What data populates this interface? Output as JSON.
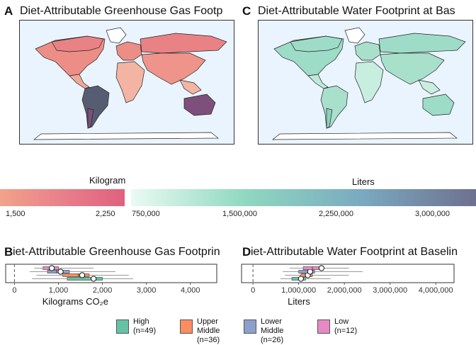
{
  "panels": {
    "A": {
      "letter": "A",
      "title": "Diet-Attributable Greenhouse Gas Footp"
    },
    "C": {
      "letter": "C",
      "title": "Diet-Attributable Water Footprint at Bas"
    },
    "B": {
      "letter": "B",
      "title": "iet-Attributable Greenhouse Gas Footprin"
    },
    "D": {
      "letter": "D",
      "title": "iet-Attributable Water Footprint at Baselin"
    }
  },
  "colors": {
    "ghg_gradient": [
      "#f2a28a",
      "#e8808a",
      "#e0607e"
    ],
    "water_gradient": [
      "#eafaf3",
      "#8fd8bf",
      "#7aaac0",
      "#6e7090"
    ],
    "ocean": "#eaf4ff",
    "income_groups": {
      "high": "#66c2a5",
      "upper_middle": "#fc8d62",
      "lower_middle": "#8da0cb",
      "low": "#e78ac3"
    }
  },
  "legends": {
    "ghg": {
      "title": "Kilogram",
      "ticks": [
        "1,500",
        "2,250"
      ]
    },
    "water": {
      "title": "Liters",
      "ticks": [
        "750,000",
        "1,500,000",
        "2,250,000",
        "3,000,000"
      ]
    }
  },
  "income_key": [
    {
      "name": "High",
      "n": "(n=49)",
      "color": "#66c2a5"
    },
    {
      "name": "Upper Middle",
      "n": "(n=36)",
      "color": "#fc8d62"
    },
    {
      "name": "Lower Middle",
      "n": "(n=26)",
      "color": "#8da0cb"
    },
    {
      "name": "Low",
      "n": "(n=12)",
      "color": "#e78ac3"
    }
  ],
  "chart_data": [
    {
      "type": "box",
      "panel": "B",
      "xlabel": "Kilograms CO₂e",
      "ylabel": "",
      "xlim": [
        -200,
        4600
      ],
      "xticks": [
        0,
        1000,
        2000,
        3000,
        4000
      ],
      "xtick_labels": [
        "0",
        "1,000",
        "2,000",
        "3,000",
        "4,000"
      ],
      "reference_line_x": 0,
      "grid": false,
      "series": [
        {
          "name": "High",
          "q1": 1200,
          "median": 1750,
          "q3": 2000,
          "whisker_low": 400,
          "whisker_high": 2700,
          "mean": 1800
        },
        {
          "name": "Upper Middle",
          "q1": 1100,
          "median": 1450,
          "q3": 1700,
          "whisker_low": 500,
          "whisker_high": 2600,
          "mean": 1540
        },
        {
          "name": "Lower Middle",
          "q1": 750,
          "median": 950,
          "q3": 1250,
          "whisker_low": 350,
          "whisker_high": 2300,
          "mean": 1050
        },
        {
          "name": "Low",
          "q1": 650,
          "median": 800,
          "q3": 1000,
          "whisker_low": 450,
          "whisker_high": 1800,
          "mean": 850
        }
      ]
    },
    {
      "type": "box",
      "panel": "D",
      "xlabel": "Liters",
      "ylabel": "",
      "xlim": [
        -250000,
        4400000
      ],
      "xticks": [
        0,
        1000000,
        2000000,
        3000000,
        4000000
      ],
      "xtick_labels": [
        "0",
        "1,000,000",
        "2,000,000",
        "3,000,000",
        "4,000,000"
      ],
      "reference_line_x": 0,
      "grid": false,
      "series": [
        {
          "name": "High",
          "q1": 850000,
          "median": 1000000,
          "q3": 1150000,
          "whisker_low": 600000,
          "whisker_high": 1700000,
          "mean": 1050000
        },
        {
          "name": "Upper Middle",
          "q1": 1050000,
          "median": 1150000,
          "q3": 1300000,
          "whisker_low": 700000,
          "whisker_high": 2100000,
          "mean": 1200000
        },
        {
          "name": "Lower Middle",
          "q1": 1000000,
          "median": 1200000,
          "q3": 1350000,
          "whisker_low": 650000,
          "whisker_high": 2400000,
          "mean": 1250000
        },
        {
          "name": "Low",
          "q1": 1100000,
          "median": 1300000,
          "q3": 1500000,
          "whisker_low": 800000,
          "whisker_high": 2100000,
          "mean": 1500000
        }
      ]
    }
  ]
}
